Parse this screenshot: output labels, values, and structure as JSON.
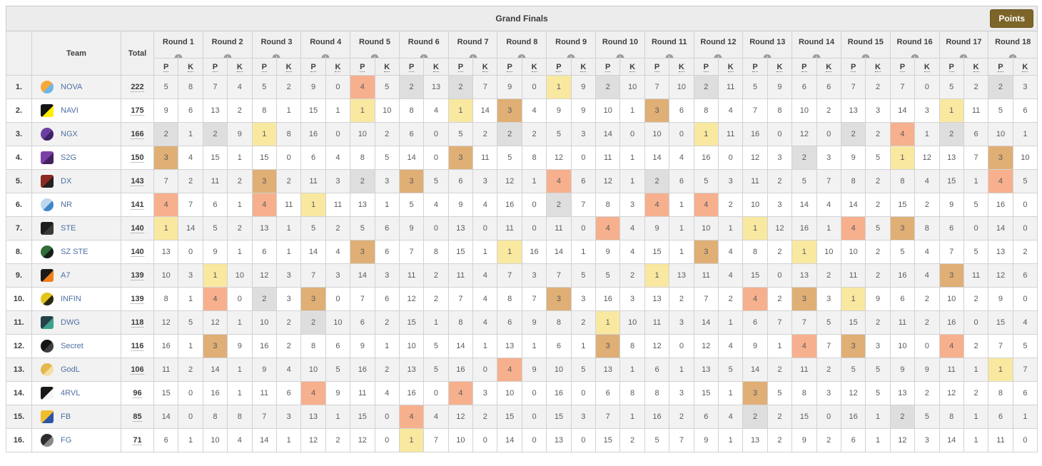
{
  "header": {
    "title": "Grand Finals",
    "points_button": "Points"
  },
  "columns": {
    "team_label": "Team",
    "total_label": "Total",
    "p_label": "P",
    "k_label": "K",
    "info_icon": "i",
    "rounds": [
      "Round 1",
      "Round 2",
      "Round 3",
      "Round 4",
      "Round 5",
      "Round 6",
      "Round 7",
      "Round 8",
      "Round 9",
      "Round 10",
      "Round 11",
      "Round 12",
      "Round 13",
      "Round 14",
      "Round 15",
      "Round 16",
      "Round 17",
      "Round 18"
    ]
  },
  "colors": {
    "placement_1": "#f8e8a0",
    "placement_2": "#dedede",
    "placement_3": "#dfaf76",
    "placement_4": "#f7b08d",
    "team_link": "#4e6fa5",
    "points_button_bg": "#7d6428",
    "title_bar_bg": "#ececec",
    "header_bg": "#f0f0f0",
    "row_odd_bg": "#f2f2f2",
    "row_even_bg": "#ffffff"
  },
  "teams": [
    {
      "rank": "1.",
      "name": "NOVA",
      "total": "222",
      "logo": {
        "shape": "circle",
        "c1": "#f6a83b",
        "c2": "#6db7e6"
      },
      "rounds": [
        [
          5,
          8
        ],
        [
          7,
          4
        ],
        [
          5,
          2
        ],
        [
          9,
          0
        ],
        [
          4,
          5
        ],
        [
          2,
          13
        ],
        [
          2,
          7
        ],
        [
          9,
          0
        ],
        [
          1,
          9
        ],
        [
          2,
          10
        ],
        [
          7,
          10
        ],
        [
          2,
          11
        ],
        [
          5,
          9
        ],
        [
          6,
          6
        ],
        [
          7,
          2
        ],
        [
          7,
          0
        ],
        [
          5,
          2
        ],
        [
          2,
          3
        ]
      ]
    },
    {
      "rank": "2.",
      "name": "NAVI",
      "total": "175",
      "logo": {
        "shape": "square",
        "c1": "#141414",
        "c2": "#ffee00"
      },
      "rounds": [
        [
          9,
          6
        ],
        [
          13,
          2
        ],
        [
          8,
          1
        ],
        [
          15,
          1
        ],
        [
          1,
          10
        ],
        [
          8,
          4
        ],
        [
          1,
          14
        ],
        [
          3,
          4
        ],
        [
          9,
          9
        ],
        [
          10,
          1
        ],
        [
          3,
          6
        ],
        [
          8,
          4
        ],
        [
          7,
          8
        ],
        [
          10,
          2
        ],
        [
          13,
          3
        ],
        [
          14,
          3
        ],
        [
          1,
          11
        ],
        [
          5,
          6
        ]
      ]
    },
    {
      "rank": "3.",
      "name": "NGX",
      "total": "166",
      "logo": {
        "shape": "circle",
        "c1": "#6a3fa0",
        "c2": "#3c2366"
      },
      "rounds": [
        [
          2,
          1
        ],
        [
          2,
          9
        ],
        [
          1,
          8
        ],
        [
          16,
          0
        ],
        [
          10,
          2
        ],
        [
          6,
          0
        ],
        [
          5,
          2
        ],
        [
          2,
          2
        ],
        [
          5,
          3
        ],
        [
          14,
          0
        ],
        [
          10,
          0
        ],
        [
          1,
          11
        ],
        [
          16,
          0
        ],
        [
          12,
          0
        ],
        [
          2,
          2
        ],
        [
          4,
          1
        ],
        [
          2,
          6
        ],
        [
          10,
          1
        ]
      ]
    },
    {
      "rank": "4.",
      "name": "S2G",
      "total": "150",
      "logo": {
        "shape": "square",
        "c1": "#7b3fa8",
        "c2": "#43215e"
      },
      "rounds": [
        [
          3,
          4
        ],
        [
          15,
          1
        ],
        [
          15,
          0
        ],
        [
          6,
          4
        ],
        [
          8,
          5
        ],
        [
          14,
          0
        ],
        [
          3,
          11
        ],
        [
          5,
          8
        ],
        [
          12,
          0
        ],
        [
          11,
          1
        ],
        [
          14,
          4
        ],
        [
          16,
          0
        ],
        [
          12,
          3
        ],
        [
          2,
          3
        ],
        [
          9,
          5
        ],
        [
          1,
          12
        ],
        [
          13,
          7
        ],
        [
          3,
          10
        ]
      ]
    },
    {
      "rank": "5.",
      "name": "DX",
      "total": "143",
      "logo": {
        "shape": "square",
        "c1": "#8c2a22",
        "c2": "#26201e"
      },
      "rounds": [
        [
          7,
          2
        ],
        [
          11,
          2
        ],
        [
          3,
          2
        ],
        [
          11,
          3
        ],
        [
          2,
          3
        ],
        [
          3,
          5
        ],
        [
          6,
          3
        ],
        [
          12,
          1
        ],
        [
          4,
          6
        ],
        [
          12,
          1
        ],
        [
          2,
          6
        ],
        [
          5,
          3
        ],
        [
          11,
          2
        ],
        [
          5,
          7
        ],
        [
          8,
          2
        ],
        [
          8,
          4
        ],
        [
          15,
          1
        ],
        [
          4,
          5
        ]
      ]
    },
    {
      "rank": "6.",
      "name": "NR",
      "total": "141",
      "logo": {
        "shape": "circle",
        "c1": "#bcd6ee",
        "c2": "#3f86c9"
      },
      "rounds": [
        [
          4,
          7
        ],
        [
          6,
          1
        ],
        [
          4,
          11
        ],
        [
          1,
          11
        ],
        [
          13,
          1
        ],
        [
          5,
          4
        ],
        [
          9,
          4
        ],
        [
          16,
          0
        ],
        [
          2,
          7
        ],
        [
          8,
          3
        ],
        [
          4,
          1
        ],
        [
          4,
          2
        ],
        [
          10,
          3
        ],
        [
          14,
          4
        ],
        [
          14,
          2
        ],
        [
          15,
          2
        ],
        [
          9,
          5
        ],
        [
          16,
          0
        ]
      ]
    },
    {
      "rank": "7.",
      "name": "STE",
      "total": "140",
      "logo": {
        "shape": "square",
        "c1": "#1d1d1d",
        "c2": "#3a3a3a"
      },
      "rounds": [
        [
          1,
          14
        ],
        [
          5,
          2
        ],
        [
          13,
          1
        ],
        [
          5,
          2
        ],
        [
          5,
          6
        ],
        [
          9,
          0
        ],
        [
          13,
          0
        ],
        [
          11,
          0
        ],
        [
          11,
          0
        ],
        [
          4,
          4
        ],
        [
          9,
          1
        ],
        [
          10,
          1
        ],
        [
          1,
          12
        ],
        [
          16,
          1
        ],
        [
          4,
          5
        ],
        [
          3,
          8
        ],
        [
          6,
          0
        ],
        [
          14,
          0
        ]
      ]
    },
    {
      "rank": "8.",
      "name": "SZ STE",
      "total": "140",
      "logo": {
        "shape": "circle",
        "c1": "#2f6e3a",
        "c2": "#142016"
      },
      "rounds": [
        [
          13,
          0
        ],
        [
          9,
          1
        ],
        [
          6,
          1
        ],
        [
          14,
          4
        ],
        [
          3,
          6
        ],
        [
          7,
          8
        ],
        [
          15,
          1
        ],
        [
          1,
          16
        ],
        [
          14,
          1
        ],
        [
          9,
          4
        ],
        [
          15,
          1
        ],
        [
          3,
          4
        ],
        [
          8,
          2
        ],
        [
          1,
          10
        ],
        [
          10,
          2
        ],
        [
          5,
          4
        ],
        [
          7,
          5
        ],
        [
          13,
          2
        ]
      ]
    },
    {
      "rank": "9.",
      "name": "A7",
      "total": "139",
      "logo": {
        "shape": "square",
        "c1": "#1a1a1a",
        "c2": "#f08018"
      },
      "rounds": [
        [
          10,
          3
        ],
        [
          1,
          10
        ],
        [
          12,
          3
        ],
        [
          7,
          3
        ],
        [
          14,
          3
        ],
        [
          11,
          2
        ],
        [
          11,
          4
        ],
        [
          7,
          3
        ],
        [
          7,
          5
        ],
        [
          5,
          2
        ],
        [
          1,
          13
        ],
        [
          11,
          4
        ],
        [
          15,
          0
        ],
        [
          13,
          2
        ],
        [
          11,
          2
        ],
        [
          16,
          4
        ],
        [
          3,
          11
        ],
        [
          12,
          6
        ]
      ]
    },
    {
      "rank": "10.",
      "name": "INFIN",
      "total": "139",
      "logo": {
        "shape": "circle",
        "c1": "#e3c419",
        "c2": "#2a2a12"
      },
      "rounds": [
        [
          8,
          1
        ],
        [
          4,
          0
        ],
        [
          2,
          3
        ],
        [
          3,
          0
        ],
        [
          7,
          6
        ],
        [
          12,
          2
        ],
        [
          7,
          4
        ],
        [
          8,
          7
        ],
        [
          3,
          3
        ],
        [
          16,
          3
        ],
        [
          13,
          2
        ],
        [
          7,
          2
        ],
        [
          4,
          2
        ],
        [
          3,
          3
        ],
        [
          1,
          9
        ],
        [
          6,
          2
        ],
        [
          10,
          2
        ],
        [
          9,
          0
        ]
      ]
    },
    {
      "rank": "11.",
      "name": "DWG",
      "total": "118",
      "logo": {
        "shape": "square",
        "c1": "#25424a",
        "c2": "#3fa08e"
      },
      "rounds": [
        [
          12,
          5
        ],
        [
          12,
          1
        ],
        [
          10,
          2
        ],
        [
          2,
          10
        ],
        [
          6,
          2
        ],
        [
          15,
          1
        ],
        [
          8,
          4
        ],
        [
          6,
          9
        ],
        [
          8,
          2
        ],
        [
          1,
          10
        ],
        [
          11,
          3
        ],
        [
          14,
          1
        ],
        [
          6,
          7
        ],
        [
          7,
          5
        ],
        [
          15,
          2
        ],
        [
          11,
          2
        ],
        [
          16,
          0
        ],
        [
          15,
          4
        ]
      ]
    },
    {
      "rank": "12.",
      "name": "Secret",
      "total": "116",
      "logo": {
        "shape": "circle",
        "c1": "#141414",
        "c2": "#3d3d3d"
      },
      "rounds": [
        [
          16,
          1
        ],
        [
          3,
          9
        ],
        [
          16,
          2
        ],
        [
          8,
          6
        ],
        [
          9,
          1
        ],
        [
          10,
          5
        ],
        [
          14,
          1
        ],
        [
          13,
          1
        ],
        [
          6,
          1
        ],
        [
          3,
          8
        ],
        [
          12,
          0
        ],
        [
          12,
          4
        ],
        [
          9,
          1
        ],
        [
          4,
          7
        ],
        [
          3,
          3
        ],
        [
          10,
          0
        ],
        [
          4,
          2
        ],
        [
          7,
          5
        ]
      ]
    },
    {
      "rank": "13.",
      "name": "GodL",
      "total": "106",
      "logo": {
        "shape": "circle",
        "c1": "#e5b84f",
        "c2": "#f4dfa6"
      },
      "rounds": [
        [
          11,
          2
        ],
        [
          14,
          1
        ],
        [
          9,
          4
        ],
        [
          10,
          5
        ],
        [
          16,
          2
        ],
        [
          13,
          5
        ],
        [
          16,
          0
        ],
        [
          4,
          9
        ],
        [
          10,
          5
        ],
        [
          13,
          1
        ],
        [
          6,
          1
        ],
        [
          13,
          5
        ],
        [
          14,
          2
        ],
        [
          11,
          2
        ],
        [
          5,
          5
        ],
        [
          9,
          9
        ],
        [
          11,
          1
        ],
        [
          1,
          7
        ]
      ]
    },
    {
      "rank": "14.",
      "name": "4RVL",
      "total": "96",
      "logo": {
        "shape": "square",
        "c1": "#181818",
        "c2": "#f5f5f5"
      },
      "rounds": [
        [
          15,
          0
        ],
        [
          16,
          1
        ],
        [
          11,
          6
        ],
        [
          4,
          9
        ],
        [
          11,
          4
        ],
        [
          16,
          0
        ],
        [
          4,
          3
        ],
        [
          10,
          0
        ],
        [
          16,
          0
        ],
        [
          6,
          8
        ],
        [
          8,
          3
        ],
        [
          15,
          1
        ],
        [
          3,
          5
        ],
        [
          8,
          3
        ],
        [
          12,
          5
        ],
        [
          13,
          2
        ],
        [
          12,
          2
        ],
        [
          8,
          6
        ]
      ]
    },
    {
      "rank": "15.",
      "name": "FB",
      "total": "85",
      "logo": {
        "shape": "square",
        "c1": "#f0bd2c",
        "c2": "#2b55a4"
      },
      "rounds": [
        [
          14,
          0
        ],
        [
          8,
          8
        ],
        [
          7,
          3
        ],
        [
          13,
          1
        ],
        [
          15,
          0
        ],
        [
          4,
          4
        ],
        [
          12,
          2
        ],
        [
          15,
          0
        ],
        [
          15,
          3
        ],
        [
          7,
          1
        ],
        [
          16,
          2
        ],
        [
          6,
          4
        ],
        [
          2,
          2
        ],
        [
          15,
          0
        ],
        [
          16,
          1
        ],
        [
          2,
          5
        ],
        [
          8,
          1
        ],
        [
          6,
          1
        ]
      ]
    },
    {
      "rank": "16.",
      "name": "FG",
      "total": "71",
      "logo": {
        "shape": "circle",
        "c1": "#2c2c2c",
        "c2": "#8a8a8a"
      },
      "rounds": [
        [
          6,
          1
        ],
        [
          10,
          4
        ],
        [
          14,
          1
        ],
        [
          12,
          2
        ],
        [
          12,
          0
        ],
        [
          1,
          7
        ],
        [
          10,
          0
        ],
        [
          14,
          0
        ],
        [
          13,
          0
        ],
        [
          15,
          2
        ],
        [
          5,
          7
        ],
        [
          9,
          1
        ],
        [
          13,
          2
        ],
        [
          9,
          2
        ],
        [
          6,
          1
        ],
        [
          12,
          3
        ],
        [
          14,
          1
        ],
        [
          11,
          0
        ]
      ]
    }
  ]
}
